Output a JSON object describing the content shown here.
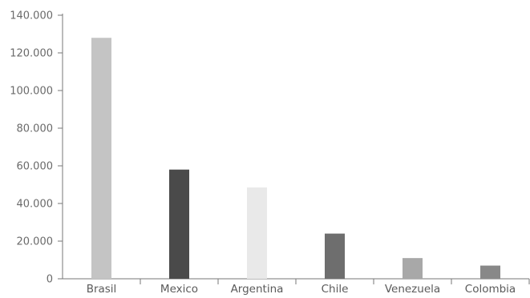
{
  "chart_data": {
    "type": "bar",
    "title": "",
    "xlabel": "",
    "ylabel": "",
    "categories": [
      "Brasil",
      "Mexico",
      "Argentina",
      "Chile",
      "Venezuela",
      "Colombia"
    ],
    "values": [
      128000,
      58000,
      48500,
      24000,
      11000,
      7000
    ],
    "colors": [
      "#c4c4c4",
      "#4a4a4a",
      "#e9e9e9",
      "#6e6e6e",
      "#a8a8a8",
      "#888888"
    ],
    "ylim": [
      0,
      140000
    ],
    "yticks": [
      0,
      20000,
      40000,
      60000,
      80000,
      100000,
      120000,
      140000
    ],
    "ytick_labels": [
      "0",
      "20.000",
      "40.000",
      "60.000",
      "80.000",
      "100.000",
      "120.000",
      "140.000"
    ],
    "grid": false,
    "legend": "none"
  }
}
